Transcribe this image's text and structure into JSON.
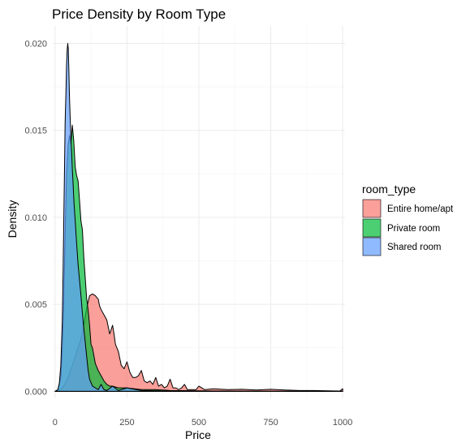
{
  "chart_data": {
    "type": "area",
    "title": "Price Density by Room Type",
    "xlabel": "Price",
    "ylabel": "Density",
    "xlim": [
      -8,
      1008
    ],
    "ylim": [
      -0.0004,
      0.021
    ],
    "x_ticks": [
      0,
      250,
      500,
      750,
      1000
    ],
    "x_tick_labels": [
      "0",
      "250",
      "500",
      "750",
      "1000"
    ],
    "y_ticks": [
      0,
      0.005,
      0.01,
      0.015,
      0.02
    ],
    "y_tick_labels": [
      "0.000",
      "0.005",
      "0.010",
      "0.015",
      "0.020"
    ],
    "grid": true,
    "legend": {
      "title": "room_type",
      "position": "right",
      "entries": [
        "Entire home/apt",
        "Private room",
        "Shared room"
      ]
    },
    "series": [
      {
        "name": "Entire home/apt",
        "color": "#F8766D",
        "points": [
          [
            0,
            0
          ],
          [
            10,
            2e-05
          ],
          [
            20,
            0.0001
          ],
          [
            30,
            0.0003
          ],
          [
            40,
            0.0006
          ],
          [
            50,
            0.001
          ],
          [
            60,
            0.0015
          ],
          [
            70,
            0.002
          ],
          [
            80,
            0.0025
          ],
          [
            90,
            0.003
          ],
          [
            100,
            0.0038
          ],
          [
            110,
            0.0048
          ],
          [
            120,
            0.0055
          ],
          [
            130,
            0.0056
          ],
          [
            140,
            0.0055
          ],
          [
            150,
            0.0053
          ],
          [
            155,
            0.0049
          ],
          [
            160,
            0.0047
          ],
          [
            170,
            0.0044
          ],
          [
            180,
            0.0041
          ],
          [
            190,
            0.0033
          ],
          [
            200,
            0.0038
          ],
          [
            205,
            0.0033
          ],
          [
            210,
            0.0027
          ],
          [
            220,
            0.0023
          ],
          [
            230,
            0.0015
          ],
          [
            240,
            0.0013
          ],
          [
            250,
            0.0017
          ],
          [
            260,
            0.0011
          ],
          [
            270,
            0.0008
          ],
          [
            280,
            0.0008
          ],
          [
            290,
            0.0009
          ],
          [
            300,
            0.0012
          ],
          [
            310,
            0.0006
          ],
          [
            320,
            0.0005
          ],
          [
            330,
            0.0006
          ],
          [
            340,
            0.0004
          ],
          [
            350,
            0.0008
          ],
          [
            360,
            0.0003
          ],
          [
            370,
            0.0004
          ],
          [
            380,
            0.0002
          ],
          [
            390,
            0.0003
          ],
          [
            400,
            0.0007
          ],
          [
            410,
            0.0002
          ],
          [
            420,
            0.0002
          ],
          [
            430,
            0.0001
          ],
          [
            440,
            0.0002
          ],
          [
            450,
            0.0004
          ],
          [
            460,
            0.0001
          ],
          [
            470,
            0.0001
          ],
          [
            490,
            0.0001
          ],
          [
            500,
            0.0003
          ],
          [
            520,
            0.0001
          ],
          [
            550,
            0.00015
          ],
          [
            600,
            0.0001
          ],
          [
            650,
            0.00012
          ],
          [
            700,
            8e-05
          ],
          [
            750,
            0.00012
          ],
          [
            800,
            8e-05
          ],
          [
            850,
            5e-05
          ],
          [
            900,
            5e-05
          ],
          [
            950,
            3e-05
          ],
          [
            990,
            2e-05
          ],
          [
            1000,
            0.00015
          ]
        ]
      },
      {
        "name": "Private room",
        "color": "#00BA38",
        "points": [
          [
            0,
            0
          ],
          [
            10,
            0.0001
          ],
          [
            20,
            0.0008
          ],
          [
            25,
            0.0025
          ],
          [
            30,
            0.005
          ],
          [
            35,
            0.009
          ],
          [
            40,
            0.0125
          ],
          [
            45,
            0.0141
          ],
          [
            50,
            0.0147
          ],
          [
            55,
            0.0142
          ],
          [
            60,
            0.0153
          ],
          [
            65,
            0.0144
          ],
          [
            70,
            0.0129
          ],
          [
            75,
            0.0124
          ],
          [
            80,
            0.0121
          ],
          [
            85,
            0.011
          ],
          [
            90,
            0.0098
          ],
          [
            95,
            0.0093
          ],
          [
            100,
            0.0077
          ],
          [
            105,
            0.0065
          ],
          [
            110,
            0.0053
          ],
          [
            115,
            0.0047
          ],
          [
            120,
            0.0038
          ],
          [
            125,
            0.0027
          ],
          [
            130,
            0.0025
          ],
          [
            140,
            0.0016
          ],
          [
            150,
            0.0012
          ],
          [
            160,
            0.0009
          ],
          [
            170,
            0.0006
          ],
          [
            180,
            0.0004
          ],
          [
            190,
            0.0003
          ],
          [
            200,
            0.0003
          ],
          [
            220,
            0.0002
          ],
          [
            250,
            0.0002
          ],
          [
            300,
            0.0001
          ],
          [
            350,
            0.0001
          ],
          [
            400,
            5e-05
          ],
          [
            500,
            3e-05
          ],
          [
            600,
            2e-05
          ],
          [
            700,
            1e-05
          ],
          [
            800,
            1e-05
          ],
          [
            1000,
            0
          ]
        ]
      },
      {
        "name": "Shared room",
        "color": "#619CFF",
        "points": [
          [
            0,
            0
          ],
          [
            10,
            0.0001
          ],
          [
            15,
            0.0005
          ],
          [
            20,
            0.0015
          ],
          [
            25,
            0.004
          ],
          [
            28,
            0.007
          ],
          [
            30,
            0.0095
          ],
          [
            33,
            0.013
          ],
          [
            35,
            0.0155
          ],
          [
            38,
            0.0173
          ],
          [
            40,
            0.0188
          ],
          [
            42,
            0.0196
          ],
          [
            44,
            0.02
          ],
          [
            46,
            0.0197
          ],
          [
            48,
            0.0185
          ],
          [
            50,
            0.017
          ],
          [
            52,
            0.016
          ],
          [
            55,
            0.0146
          ],
          [
            58,
            0.0136
          ],
          [
            60,
            0.0128
          ],
          [
            63,
            0.0118
          ],
          [
            66,
            0.0108
          ],
          [
            70,
            0.0098
          ],
          [
            75,
            0.0085
          ],
          [
            80,
            0.0073
          ],
          [
            85,
            0.0064
          ],
          [
            90,
            0.0055
          ],
          [
            95,
            0.0045
          ],
          [
            100,
            0.0036
          ],
          [
            105,
            0.0028
          ],
          [
            110,
            0.002
          ],
          [
            115,
            0.0012
          ],
          [
            120,
            0.0007
          ],
          [
            130,
            0.0003
          ],
          [
            140,
            0.0002
          ],
          [
            150,
            0.0001
          ],
          [
            160,
            0.0004
          ],
          [
            170,
            0.0001
          ],
          [
            180,
            5e-05
          ],
          [
            200,
            0.0003
          ],
          [
            220,
            5e-05
          ],
          [
            250,
            0.0002
          ],
          [
            300,
            5e-05
          ],
          [
            400,
            2e-05
          ],
          [
            500,
            2e-05
          ],
          [
            600,
            1e-05
          ],
          [
            1000,
            0
          ]
        ]
      }
    ]
  }
}
